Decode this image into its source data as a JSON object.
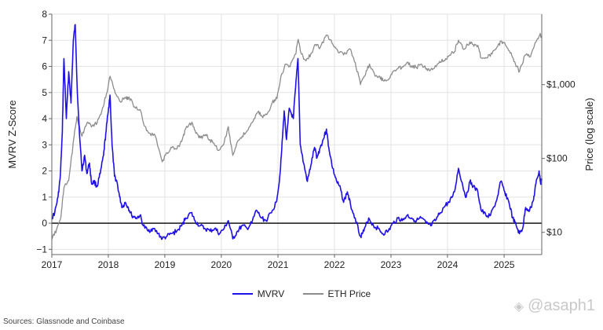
{
  "chart_data": {
    "type": "line",
    "x_ticks": [
      "2017",
      "2018",
      "2019",
      "2020",
      "2021",
      "2022",
      "2023",
      "2024",
      "2025"
    ],
    "x_range": [
      "2017-01-01",
      "2025-09-01"
    ],
    "y_left": {
      "label": "MVRV Z-Score",
      "ticks": [
        "8",
        "7",
        "6",
        "5",
        "4",
        "3",
        "2",
        "1",
        "0",
        "−1"
      ],
      "range": [
        -1.2,
        8
      ]
    },
    "y_right": {
      "label": "Price (log scale)",
      "scale": "log",
      "ticks": [
        "$1,000",
        "$100",
        "$10"
      ],
      "range": [
        5,
        9000
      ]
    },
    "series": [
      {
        "name": "MVRV",
        "color": "#1f10e6",
        "axis": "left",
        "points": [
          [
            "2017-01-01",
            0.2
          ],
          [
            "2017-01-20",
            0.4
          ],
          [
            "2017-02-10",
            1.0
          ],
          [
            "2017-02-25",
            1.8
          ],
          [
            "2017-03-10",
            3.5
          ],
          [
            "2017-03-20",
            6.3
          ],
          [
            "2017-04-05",
            4.0
          ],
          [
            "2017-04-20",
            5.8
          ],
          [
            "2017-05-05",
            4.6
          ],
          [
            "2017-05-20",
            7.0
          ],
          [
            "2017-06-01",
            7.6
          ],
          [
            "2017-06-15",
            5.0
          ],
          [
            "2017-07-01",
            3.2
          ],
          [
            "2017-07-15",
            2.0
          ],
          [
            "2017-08-01",
            2.6
          ],
          [
            "2017-08-15",
            1.9
          ],
          [
            "2017-09-01",
            2.3
          ],
          [
            "2017-09-15",
            1.5
          ],
          [
            "2017-10-01",
            1.6
          ],
          [
            "2017-10-20",
            1.4
          ],
          [
            "2017-11-10",
            1.9
          ],
          [
            "2017-12-01",
            2.6
          ],
          [
            "2017-12-15",
            3.4
          ],
          [
            "2018-01-01",
            4.3
          ],
          [
            "2018-01-12",
            4.9
          ],
          [
            "2018-01-25",
            3.0
          ],
          [
            "2018-02-10",
            1.8
          ],
          [
            "2018-02-25",
            1.6
          ],
          [
            "2018-03-15",
            1.0
          ],
          [
            "2018-04-01",
            0.6
          ],
          [
            "2018-04-20",
            0.8
          ],
          [
            "2018-05-10",
            0.6
          ],
          [
            "2018-06-01",
            0.3
          ],
          [
            "2018-07-01",
            0.2
          ],
          [
            "2018-07-25",
            0.3
          ],
          [
            "2018-08-15",
            -0.1
          ],
          [
            "2018-09-15",
            -0.3
          ],
          [
            "2018-10-15",
            -0.2
          ],
          [
            "2018-11-20",
            -0.4
          ],
          [
            "2018-12-15",
            -0.6
          ],
          [
            "2019-01-15",
            -0.5
          ],
          [
            "2019-02-15",
            -0.4
          ],
          [
            "2019-03-20",
            -0.3
          ],
          [
            "2019-04-20",
            -0.1
          ],
          [
            "2019-05-15",
            0.2
          ],
          [
            "2019-06-20",
            0.4
          ],
          [
            "2019-07-15",
            0.1
          ],
          [
            "2019-08-15",
            -0.1
          ],
          [
            "2019-09-15",
            -0.2
          ],
          [
            "2019-10-20",
            -0.3
          ],
          [
            "2019-11-20",
            -0.2
          ],
          [
            "2019-12-20",
            -0.4
          ],
          [
            "2020-01-20",
            -0.2
          ],
          [
            "2020-02-15",
            0.1
          ],
          [
            "2020-03-15",
            -0.6
          ],
          [
            "2020-04-15",
            -0.3
          ],
          [
            "2020-05-15",
            -0.1
          ],
          [
            "2020-06-15",
            -0.2
          ],
          [
            "2020-07-15",
            0.0
          ],
          [
            "2020-08-15",
            0.5
          ],
          [
            "2020-09-15",
            0.2
          ],
          [
            "2020-10-15",
            0.1
          ],
          [
            "2020-11-20",
            0.4
          ],
          [
            "2020-12-20",
            0.8
          ],
          [
            "2021-01-10",
            1.6
          ],
          [
            "2021-01-25",
            2.8
          ],
          [
            "2021-02-10",
            4.3
          ],
          [
            "2021-02-25",
            3.2
          ],
          [
            "2021-03-15",
            4.4
          ],
          [
            "2021-04-10",
            4.0
          ],
          [
            "2021-04-25",
            5.2
          ],
          [
            "2021-05-10",
            6.3
          ],
          [
            "2021-05-25",
            3.0
          ],
          [
            "2021-06-15",
            2.3
          ],
          [
            "2021-07-10",
            1.6
          ],
          [
            "2021-08-01",
            2.2
          ],
          [
            "2021-08-25",
            2.9
          ],
          [
            "2021-09-10",
            2.5
          ],
          [
            "2021-10-01",
            2.9
          ],
          [
            "2021-10-20",
            3.2
          ],
          [
            "2021-11-10",
            3.6
          ],
          [
            "2021-11-25",
            2.9
          ],
          [
            "2021-12-20",
            2.1
          ],
          [
            "2022-01-15",
            1.6
          ],
          [
            "2022-02-10",
            1.3
          ],
          [
            "2022-03-01",
            0.8
          ],
          [
            "2022-03-25",
            1.2
          ],
          [
            "2022-04-15",
            0.7
          ],
          [
            "2022-05-15",
            0.2
          ],
          [
            "2022-06-18",
            -0.5
          ],
          [
            "2022-07-10",
            -0.3
          ],
          [
            "2022-08-10",
            0.2
          ],
          [
            "2022-09-10",
            -0.1
          ],
          [
            "2022-10-10",
            -0.2
          ],
          [
            "2022-11-10",
            -0.4
          ],
          [
            "2022-12-15",
            -0.3
          ],
          [
            "2023-01-15",
            0.0
          ],
          [
            "2023-02-15",
            0.2
          ],
          [
            "2023-03-15",
            0.1
          ],
          [
            "2023-04-15",
            0.3
          ],
          [
            "2023-05-15",
            0.2
          ],
          [
            "2023-06-15",
            0.1
          ],
          [
            "2023-07-15",
            0.2
          ],
          [
            "2023-08-15",
            0.0
          ],
          [
            "2023-09-15",
            -0.1
          ],
          [
            "2023-10-15",
            0.1
          ],
          [
            "2023-11-15",
            0.4
          ],
          [
            "2023-12-20",
            0.7
          ],
          [
            "2024-01-15",
            0.8
          ],
          [
            "2024-02-15",
            1.2
          ],
          [
            "2024-03-12",
            2.1
          ],
          [
            "2024-04-10",
            1.4
          ],
          [
            "2024-05-01",
            1.0
          ],
          [
            "2024-05-25",
            1.6
          ],
          [
            "2024-06-15",
            1.4
          ],
          [
            "2024-07-15",
            1.2
          ],
          [
            "2024-08-05",
            0.5
          ],
          [
            "2024-09-05",
            0.3
          ],
          [
            "2024-10-05",
            0.3
          ],
          [
            "2024-11-15",
            0.9
          ],
          [
            "2024-12-10",
            1.6
          ],
          [
            "2025-01-05",
            1.2
          ],
          [
            "2025-02-01",
            0.8
          ],
          [
            "2025-02-25",
            0.2
          ],
          [
            "2025-03-20",
            -0.1
          ],
          [
            "2025-04-10",
            -0.4
          ],
          [
            "2025-05-01",
            -0.2
          ],
          [
            "2025-05-20",
            0.6
          ],
          [
            "2025-06-15",
            0.5
          ],
          [
            "2025-07-10",
            0.9
          ],
          [
            "2025-07-25",
            1.5
          ],
          [
            "2025-08-15",
            2.0
          ],
          [
            "2025-08-25",
            1.5
          ],
          [
            "2025-09-01",
            1.7
          ]
        ]
      },
      {
        "name": "ETH Price",
        "color": "#8c8c8c",
        "axis": "right",
        "points": [
          [
            "2017-01-01",
            8
          ],
          [
            "2017-02-01",
            11
          ],
          [
            "2017-03-01",
            16
          ],
          [
            "2017-03-20",
            40
          ],
          [
            "2017-04-20",
            50
          ],
          [
            "2017-05-25",
            200
          ],
          [
            "2017-06-12",
            370
          ],
          [
            "2017-07-15",
            200
          ],
          [
            "2017-08-15",
            300
          ],
          [
            "2017-09-20",
            280
          ],
          [
            "2017-10-20",
            300
          ],
          [
            "2017-11-20",
            440
          ],
          [
            "2017-12-20",
            750
          ],
          [
            "2018-01-13",
            1300
          ],
          [
            "2018-02-10",
            850
          ],
          [
            "2018-03-15",
            600
          ],
          [
            "2018-04-25",
            650
          ],
          [
            "2018-05-15",
            680
          ],
          [
            "2018-06-20",
            500
          ],
          [
            "2018-07-25",
            460
          ],
          [
            "2018-08-20",
            280
          ],
          [
            "2018-09-20",
            220
          ],
          [
            "2018-11-01",
            200
          ],
          [
            "2018-12-15",
            90
          ],
          [
            "2019-01-15",
            120
          ],
          [
            "2019-02-15",
            140
          ],
          [
            "2019-03-20",
            135
          ],
          [
            "2019-04-20",
            170
          ],
          [
            "2019-05-15",
            250
          ],
          [
            "2019-06-25",
            310
          ],
          [
            "2019-07-20",
            220
          ],
          [
            "2019-08-20",
            190
          ],
          [
            "2019-09-20",
            210
          ],
          [
            "2019-10-20",
            180
          ],
          [
            "2019-11-20",
            150
          ],
          [
            "2019-12-20",
            130
          ],
          [
            "2020-01-20",
            165
          ],
          [
            "2020-02-15",
            270
          ],
          [
            "2020-03-15",
            110
          ],
          [
            "2020-04-15",
            170
          ],
          [
            "2020-05-15",
            200
          ],
          [
            "2020-06-15",
            235
          ],
          [
            "2020-07-25",
            320
          ],
          [
            "2020-08-25",
            430
          ],
          [
            "2020-09-20",
            370
          ],
          [
            "2020-10-20",
            390
          ],
          [
            "2020-11-25",
            570
          ],
          [
            "2020-12-25",
            650
          ],
          [
            "2021-01-20",
            1300
          ],
          [
            "2021-02-20",
            1900
          ],
          [
            "2021-03-20",
            1750
          ],
          [
            "2021-04-25",
            2600
          ],
          [
            "2021-05-12",
            4100
          ],
          [
            "2021-06-01",
            2600
          ],
          [
            "2021-07-01",
            2100
          ],
          [
            "2021-08-01",
            2600
          ],
          [
            "2021-09-01",
            3500
          ],
          [
            "2021-10-01",
            3200
          ],
          [
            "2021-11-10",
            4700
          ],
          [
            "2021-12-10",
            4000
          ],
          [
            "2022-01-10",
            3100
          ],
          [
            "2022-02-01",
            2700
          ],
          [
            "2022-03-15",
            2600
          ],
          [
            "2022-04-15",
            3000
          ],
          [
            "2022-05-15",
            2000
          ],
          [
            "2022-06-18",
            1000
          ],
          [
            "2022-07-15",
            1300
          ],
          [
            "2022-08-15",
            1900
          ],
          [
            "2022-09-20",
            1300
          ],
          [
            "2022-10-20",
            1300
          ],
          [
            "2022-11-10",
            1150
          ],
          [
            "2022-12-20",
            1200
          ],
          [
            "2023-01-15",
            1500
          ],
          [
            "2023-02-15",
            1650
          ],
          [
            "2023-03-15",
            1750
          ],
          [
            "2023-04-15",
            2000
          ],
          [
            "2023-05-15",
            1800
          ],
          [
            "2023-06-15",
            1700
          ],
          [
            "2023-07-15",
            1900
          ],
          [
            "2023-08-20",
            1650
          ],
          [
            "2023-09-15",
            1600
          ],
          [
            "2023-10-20",
            1750
          ],
          [
            "2023-11-15",
            2000
          ],
          [
            "2023-12-20",
            2250
          ],
          [
            "2024-01-15",
            2500
          ],
          [
            "2024-02-15",
            2800
          ],
          [
            "2024-03-12",
            4000
          ],
          [
            "2024-04-15",
            3000
          ],
          [
            "2024-05-25",
            3800
          ],
          [
            "2024-06-15",
            3500
          ],
          [
            "2024-07-15",
            3400
          ],
          [
            "2024-08-05",
            2300
          ],
          [
            "2024-09-10",
            2300
          ],
          [
            "2024-10-15",
            2600
          ],
          [
            "2024-11-20",
            3300
          ],
          [
            "2024-12-15",
            3900
          ],
          [
            "2025-01-15",
            3300
          ],
          [
            "2025-02-15",
            2700
          ],
          [
            "2025-03-15",
            1900
          ],
          [
            "2025-04-10",
            1500
          ],
          [
            "2025-05-15",
            2500
          ],
          [
            "2025-06-20",
            2400
          ],
          [
            "2025-07-20",
            3700
          ],
          [
            "2025-08-20",
            4700
          ],
          [
            "2025-09-01",
            4400
          ]
        ]
      }
    ],
    "zero_line": 0
  },
  "legend": {
    "mvrv": "MVRV",
    "eth": "ETH Price"
  },
  "source": "Sources: Glassnode and Coinbase",
  "watermark": "@asaph1"
}
